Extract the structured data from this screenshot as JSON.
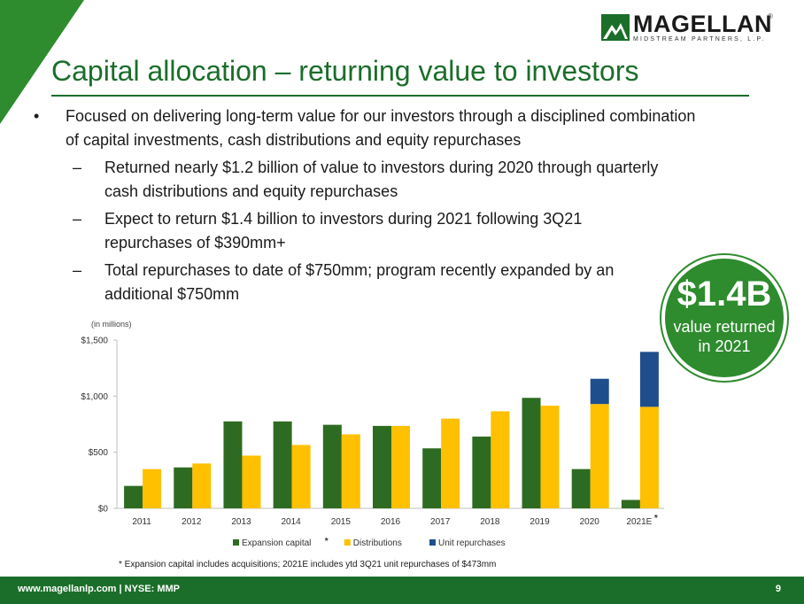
{
  "brand": {
    "name": "MAGELLAN",
    "subtitle": "MIDSTREAM PARTNERS, L.P.",
    "registered": "®",
    "green": "#1b6e2a",
    "accent_green": "#2e8b2e"
  },
  "slide": {
    "title": "Capital allocation – returning value to investors",
    "bullet_mark": "•",
    "sub_mark": "–",
    "bullet_main": "Focused on delivering long-term value for our investors through a disciplined combination of capital investments, cash distributions and equity repurchases",
    "sub_bullets": [
      "Returned nearly $1.2 billion of value to investors during 2020 through quarterly cash distributions and equity repurchases",
      "Expect to return $1.4 billion to investors during 2021 following 3Q21 repurchases of $390mm+",
      "Total repurchases to date of $750mm; program recently expanded by an additional $750mm"
    ]
  },
  "badge": {
    "value": "$1.4B",
    "line1": "value returned",
    "line2": "in 2021"
  },
  "chart_units": "(in millions)",
  "chart_data": {
    "type": "bar",
    "stacked_series": "Unit repurchases stacked on Distributions",
    "categories": [
      "2011",
      "2012",
      "2013",
      "2014",
      "2015",
      "2016",
      "2017",
      "2018",
      "2019",
      "2020",
      "2021E"
    ],
    "category_markers": {
      "2021E": "*"
    },
    "series": [
      {
        "name": "Expansion capital",
        "legend_marker": "*",
        "color": "#2e6b22",
        "values": [
          200,
          365,
          775,
          775,
          745,
          735,
          535,
          640,
          985,
          350,
          75
        ]
      },
      {
        "name": "Distributions",
        "color": "#ffc000",
        "values": [
          350,
          400,
          470,
          565,
          660,
          735,
          800,
          865,
          915,
          930,
          905
        ]
      },
      {
        "name": "Unit repurchases",
        "color": "#1f4e8c",
        "values": [
          0,
          0,
          0,
          0,
          0,
          0,
          0,
          0,
          0,
          225,
          490
        ]
      }
    ],
    "yticks": [
      "$0",
      "$500",
      "$1,000",
      "$1,500"
    ],
    "ytick_values": [
      0,
      500,
      1000,
      1500
    ],
    "ylim": [
      0,
      1500
    ],
    "grid": false,
    "legend_position": "bottom"
  },
  "footnote": "* Expansion capital includes acquisitions; 2021E includes ytd 3Q21 unit repurchases of $473mm",
  "footer": {
    "left": "www.magellanlp.com | NYSE: MMP",
    "page": "9"
  }
}
